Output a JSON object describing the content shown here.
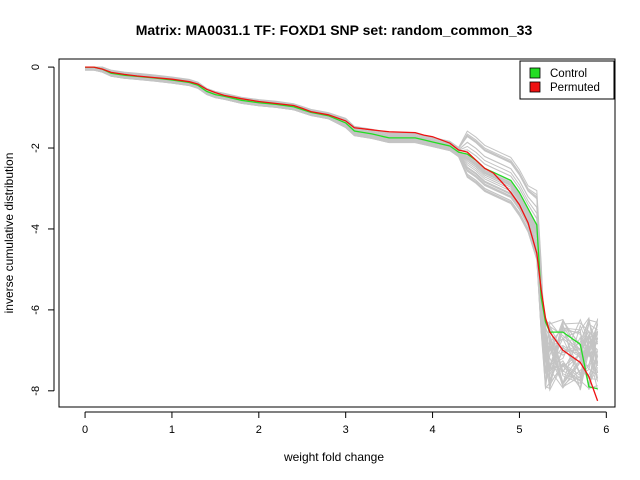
{
  "chart_data": {
    "type": "line",
    "title": "Matrix: MA0031.1 TF: FOXD1 SNP set: random_common_33",
    "xlabel": "weight fold change",
    "ylabel": "inverse cumulative distribution",
    "xlim": [
      -0.3,
      6.1
    ],
    "ylim": [
      -8.4,
      0.2
    ],
    "x_ticks": [
      0,
      1,
      2,
      3,
      4,
      5,
      6
    ],
    "x_tick_labels": [
      "0",
      "1",
      "2",
      "3",
      "4",
      "5",
      "6"
    ],
    "y_ticks": [
      0,
      -2,
      -4,
      -6,
      -8
    ],
    "y_tick_labels": [
      "0",
      "-2",
      "-4",
      "-6",
      "-8"
    ],
    "legend": {
      "position": "top-right",
      "entries": [
        {
          "label": "Control",
          "color": "#22dd22"
        },
        {
          "label": "Permuted",
          "color": "#ee1111"
        }
      ]
    },
    "series": [
      {
        "name": "Control",
        "color": "#22dd22",
        "x": [
          0.0,
          0.1,
          0.2,
          0.3,
          0.45,
          0.6,
          0.8,
          1.0,
          1.2,
          1.3,
          1.4,
          1.5,
          1.6,
          1.8,
          2.0,
          2.2,
          2.4,
          2.5,
          2.6,
          2.8,
          3.0,
          3.1,
          3.3,
          3.5,
          3.8,
          3.9,
          4.0,
          4.2,
          4.3,
          4.4,
          4.5,
          4.6,
          4.7,
          4.8,
          4.9,
          5.0,
          5.1,
          5.2,
          5.25,
          5.3,
          5.35,
          5.5,
          5.7,
          5.8,
          5.9
        ],
        "y": [
          0.0,
          0.0,
          -0.05,
          -0.15,
          -0.2,
          -0.23,
          -0.27,
          -0.32,
          -0.38,
          -0.45,
          -0.6,
          -0.68,
          -0.72,
          -0.82,
          -0.88,
          -0.92,
          -0.98,
          -1.05,
          -1.12,
          -1.2,
          -1.38,
          -1.58,
          -1.65,
          -1.75,
          -1.75,
          -1.8,
          -1.85,
          -1.95,
          -2.1,
          -2.15,
          -2.3,
          -2.5,
          -2.6,
          -2.7,
          -2.8,
          -3.1,
          -3.5,
          -3.9,
          -5.7,
          -6.3,
          -6.55,
          -6.55,
          -6.85,
          -7.9,
          -7.95
        ]
      },
      {
        "name": "Permuted",
        "color": "#ee1111",
        "x": [
          0.0,
          0.1,
          0.2,
          0.3,
          0.45,
          0.6,
          0.8,
          1.0,
          1.2,
          1.3,
          1.4,
          1.5,
          1.6,
          1.8,
          2.0,
          2.2,
          2.4,
          2.5,
          2.6,
          2.8,
          3.0,
          3.1,
          3.3,
          3.5,
          3.8,
          3.9,
          4.0,
          4.2,
          4.3,
          4.4,
          4.5,
          4.6,
          4.7,
          4.8,
          4.9,
          5.0,
          5.1,
          5.2,
          5.25,
          5.3,
          5.35,
          5.5,
          5.7,
          5.8,
          5.9
        ],
        "y": [
          0.0,
          0.0,
          -0.05,
          -0.13,
          -0.18,
          -0.22,
          -0.26,
          -0.3,
          -0.36,
          -0.42,
          -0.55,
          -0.63,
          -0.7,
          -0.78,
          -0.85,
          -0.9,
          -0.95,
          -1.02,
          -1.1,
          -1.18,
          -1.33,
          -1.5,
          -1.55,
          -1.6,
          -1.62,
          -1.68,
          -1.72,
          -1.88,
          -2.05,
          -2.1,
          -2.3,
          -2.5,
          -2.62,
          -2.85,
          -3.1,
          -3.4,
          -3.85,
          -4.6,
          -5.5,
          -6.2,
          -6.55,
          -7.0,
          -7.3,
          -7.65,
          -8.25
        ]
      }
    ]
  }
}
